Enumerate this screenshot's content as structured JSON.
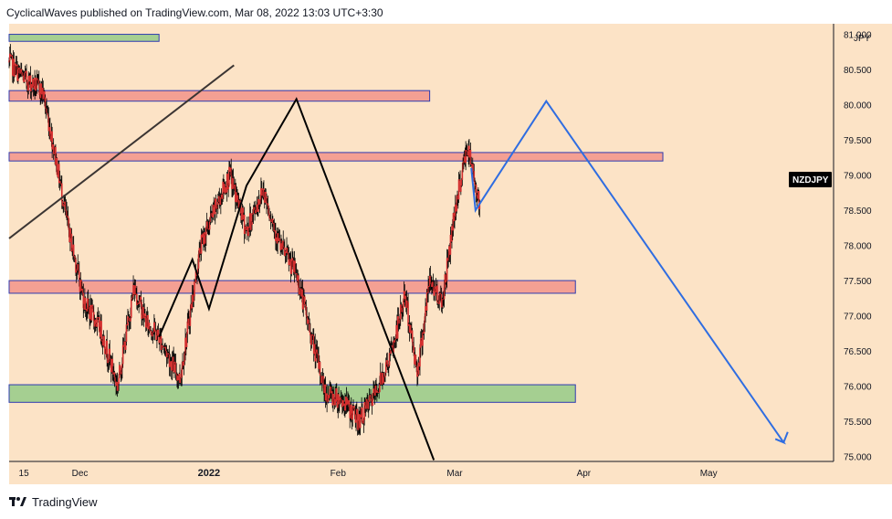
{
  "header": {
    "publish_line": "CyclicalWaves published on TradingView.com, Mar 08, 2022 13:03 UTC+3:30"
  },
  "footer": {
    "brand": "TradingView",
    "brand_icon": "tradingview-logo-icon"
  },
  "colors": {
    "chart_background": "#fce3c6",
    "candle_color": "#d32f2f",
    "wick_color": "#000000",
    "resistance_zone_fill": "#f4a093",
    "resistance_zone_border": "#2f3bb0",
    "support_zone_fill": "#a5cf91",
    "support_zone_border": "#2f3bb0",
    "past_pattern_line": "#000000",
    "trend_line": "#3b3533",
    "projection_line": "#2f6de1",
    "badge_background": "#000000"
  },
  "chart_data": {
    "type": "candlestick",
    "symbol_badge": "NZDJPY",
    "price_axis_unit": "JPY",
    "ylim": [
      74.93,
      81.15
    ],
    "y_tick_labels": [
      "81.000",
      "80.500",
      "80.000",
      "79.500",
      "79.000",
      "78.500",
      "78.000",
      "77.500",
      "77.000",
      "76.500",
      "76.000",
      "75.500",
      "75.000"
    ],
    "y_tick_values": [
      81.0,
      80.5,
      80.0,
      79.5,
      79.0,
      78.5,
      78.0,
      77.5,
      77.0,
      76.5,
      76.0,
      75.5,
      75.0
    ],
    "x_tick_labels": [
      "15",
      "Dec",
      "2022",
      "Feb",
      "Mar",
      "Apr",
      "May"
    ],
    "x_tick_bold": [
      false,
      false,
      true,
      false,
      false,
      false,
      false
    ],
    "x_tick_dates": [
      "2021-11-15",
      "2021-12-01",
      "2022-01-01",
      "2022-02-01",
      "2022-03-01",
      "2022-04-01",
      "2022-05-01"
    ],
    "xlim_dates": [
      "2021-11-14",
      "2022-05-31"
    ],
    "price_series": {
      "name": "NZDJPY",
      "dates": [
        "2021-11-14",
        "2021-11-17",
        "2021-11-22",
        "2021-11-25",
        "2021-11-28",
        "2021-12-02",
        "2021-12-06",
        "2021-12-10",
        "2021-12-14",
        "2021-12-17",
        "2021-12-20",
        "2021-12-25",
        "2021-12-30",
        "2022-01-03",
        "2022-01-06",
        "2022-01-10",
        "2022-01-14",
        "2022-01-18",
        "2022-01-22",
        "2022-01-26",
        "2022-01-29",
        "2022-02-02",
        "2022-02-06",
        "2022-02-10",
        "2022-02-14",
        "2022-02-17",
        "2022-02-20",
        "2022-02-23",
        "2022-02-26",
        "2022-03-01",
        "2022-03-04",
        "2022-03-07"
      ],
      "close": [
        80.6,
        80.4,
        80.2,
        79.3,
        78.3,
        77.2,
        76.8,
        76.0,
        77.4,
        76.9,
        76.7,
        76.1,
        78.0,
        78.6,
        79.0,
        78.2,
        78.8,
        78.0,
        77.6,
        76.6,
        75.9,
        75.8,
        75.5,
        75.9,
        76.5,
        77.3,
        76.2,
        77.5,
        77.2,
        78.5,
        79.4,
        78.6
      ]
    },
    "zones": [
      {
        "kind": "support",
        "price_low": 80.9,
        "price_high": 81.0,
        "from": "2021-11-14",
        "to": "2021-12-20"
      },
      {
        "kind": "resistance",
        "price_low": 80.05,
        "price_high": 80.2,
        "from": "2021-11-14",
        "to": "2022-02-23"
      },
      {
        "kind": "resistance",
        "price_low": 79.2,
        "price_high": 79.32,
        "from": "2021-11-14",
        "to": "2022-04-20"
      },
      {
        "kind": "resistance",
        "price_low": 77.32,
        "price_high": 77.5,
        "from": "2021-11-14",
        "to": "2022-03-30"
      },
      {
        "kind": "support",
        "price_low": 75.77,
        "price_high": 76.02,
        "from": "2021-11-14",
        "to": "2022-03-30"
      }
    ],
    "trend_line": {
      "dates": [
        "2021-11-14",
        "2022-01-07"
      ],
      "prices": [
        78.1,
        80.56
      ]
    },
    "past_pattern_line": {
      "dates": [
        "2021-12-20",
        "2021-12-28",
        "2022-01-01",
        "2022-01-10",
        "2022-01-22",
        "2022-02-24"
      ],
      "prices": [
        76.7,
        77.8,
        77.1,
        78.85,
        80.08,
        74.95
      ]
    },
    "projection_line": {
      "dates": [
        "2022-03-05",
        "2022-03-06",
        "2022-03-23",
        "2022-05-19",
        "2022-05-17",
        "2022-05-19",
        "2022-05-20"
      ],
      "prices": [
        79.1,
        78.5,
        80.05,
        75.2,
        75.25,
        75.2,
        75.35
      ]
    }
  }
}
